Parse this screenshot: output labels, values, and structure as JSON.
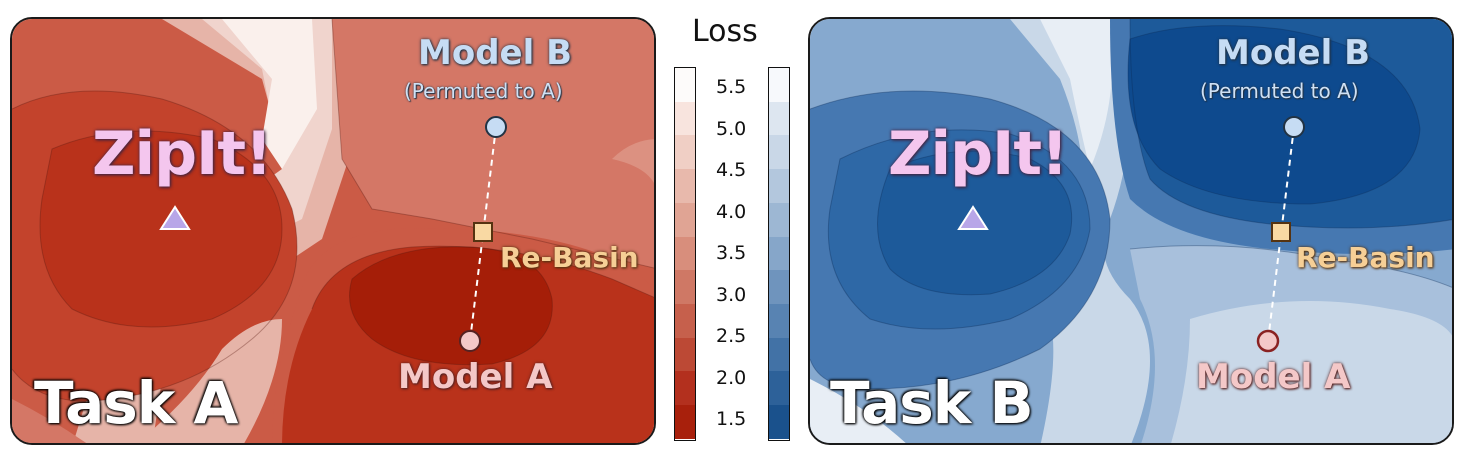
{
  "panels": {
    "task_a": {
      "label": "Task A",
      "zipit": "ZipIt!",
      "model_b": "Model B",
      "model_b_sub": "(Permuted to A)",
      "rebasin": "Re-Basin",
      "model_a": "Model A",
      "palette": [
        "#a51e08",
        "#b9321b",
        "#c3432c",
        "#cb5b46",
        "#d47766",
        "#dc9181",
        "#e6b4a8",
        "#f0d4cd",
        "#faf0ec"
      ]
    },
    "task_b": {
      "label": "Task B",
      "zipit": "ZipIt!",
      "model_b": "Model B",
      "model_b_sub": "(Permuted to A)",
      "rebasin": "Re-Basin",
      "model_a": "Model A",
      "palette": [
        "#0e4a8e",
        "#1d5a9a",
        "#2e68a6",
        "#4678b1",
        "#6391bf",
        "#86a9cf",
        "#a8c0dc",
        "#c9d8e8",
        "#e8eef5"
      ]
    }
  },
  "legend": {
    "title": "Loss",
    "ticks": [
      "5.5",
      "5.0",
      "4.5",
      "4.0",
      "3.5",
      "3.0",
      "2.5",
      "2.0",
      "1.5"
    ],
    "red_bands": [
      "#fdfbfa",
      "#f8e4de",
      "#f0cfc5",
      "#e8b9ac",
      "#e0a494",
      "#d88e7c",
      "#cf7865",
      "#c6604c",
      "#bc4935",
      "#b3301e",
      "#a8200c"
    ],
    "blue_bands": [
      "#f7f9fc",
      "#dde6f0",
      "#c9d7e7",
      "#b3c7dd",
      "#9db7d3",
      "#86a6c9",
      "#6f94bd",
      "#5883b2",
      "#4272a6",
      "#2d6199",
      "#1a518c"
    ]
  },
  "markers": {
    "zipit_color": "#b8a6e8",
    "model_b_color": "#c6dcf4",
    "rebasin_color": "#f9d9a3",
    "model_a_color": "#f4c8c8"
  }
}
